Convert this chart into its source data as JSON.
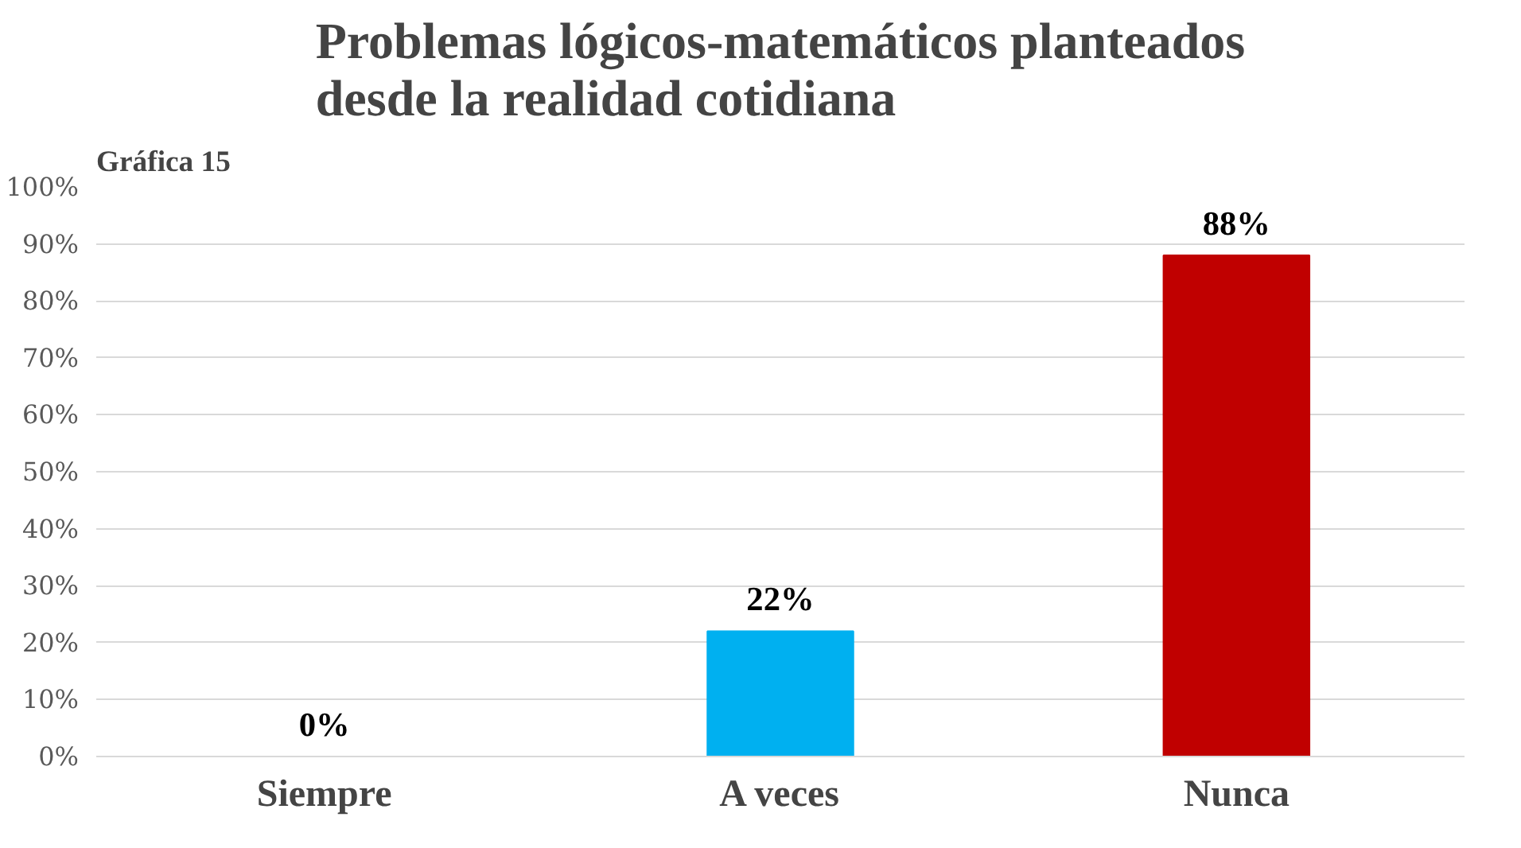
{
  "chart_data": {
    "type": "bar",
    "title": "Problemas lógicos-matemáticos planteados\ndesde la realidad cotidiana",
    "annotations": [
      "Gráfica 15"
    ],
    "categories": [
      "Siempre",
      "A veces",
      "Nunca"
    ],
    "values": [
      0,
      22,
      88
    ],
    "colors": [
      "#00b0f0",
      "#00b0f0",
      "#c00000"
    ],
    "value_labels": [
      "0%",
      "22%",
      "88%"
    ],
    "ylim": [
      0,
      100
    ],
    "yticks": [
      {
        "value": 0,
        "label": "0%"
      },
      {
        "value": 10,
        "label": "10%"
      },
      {
        "value": 20,
        "label": "20%"
      },
      {
        "value": 30,
        "label": "30%"
      },
      {
        "value": 40,
        "label": "40%"
      },
      {
        "value": 50,
        "label": "50%"
      },
      {
        "value": 60,
        "label": "60%"
      },
      {
        "value": 70,
        "label": "70%"
      },
      {
        "value": 80,
        "label": "80%"
      },
      {
        "value": 90,
        "label": "90%"
      },
      {
        "value": 100,
        "label": "100%"
      }
    ],
    "grid": "y"
  }
}
